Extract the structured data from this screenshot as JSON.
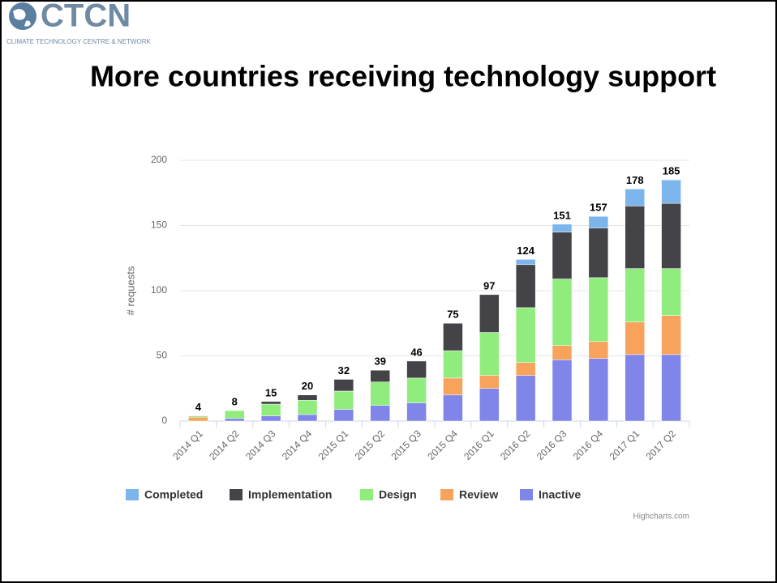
{
  "logo": {
    "name": "CTCN",
    "tagline": "CLIMATE TECHNOLOGY CENTRE & NETWORK"
  },
  "chart_data": {
    "type": "stacked_bar",
    "title": "More countries receiving technology support",
    "y_label": "# requests",
    "credits": "Highcharts.com",
    "categories": [
      "2014 Q1",
      "2014 Q2",
      "2014 Q3",
      "2014 Q4",
      "2015 Q1",
      "2015 Q2",
      "2015 Q3",
      "2015 Q4",
      "2016 Q1",
      "2016 Q2",
      "2016 Q3",
      "2016 Q4",
      "2017 Q1",
      "2017 Q2"
    ],
    "totals": [
      4,
      8,
      15,
      20,
      32,
      39,
      46,
      75,
      97,
      124,
      151,
      157,
      178,
      185
    ],
    "series": [
      {
        "name": "Completed",
        "color": "#7cb5ec",
        "values": [
          0,
          0,
          0,
          0,
          0,
          0,
          0,
          0,
          0,
          4,
          6,
          9,
          13,
          18
        ]
      },
      {
        "name": "Implementation",
        "color": "#434348",
        "values": [
          0,
          0,
          2,
          4,
          9,
          9,
          13,
          21,
          29,
          33,
          36,
          38,
          48,
          50
        ]
      },
      {
        "name": "Design",
        "color": "#90ed7d",
        "values": [
          1,
          6,
          9,
          11,
          14,
          18,
          19,
          21,
          33,
          42,
          51,
          49,
          41,
          36
        ]
      },
      {
        "name": "Review",
        "color": "#f7a35c",
        "values": [
          3,
          0,
          0,
          0,
          0,
          0,
          0,
          13,
          10,
          10,
          11,
          13,
          25,
          30
        ]
      },
      {
        "name": "Inactive",
        "color": "#8085e9",
        "values": [
          0,
          2,
          4,
          5,
          9,
          12,
          14,
          20,
          25,
          35,
          47,
          48,
          51,
          51
        ]
      }
    ],
    "ylim": [
      0,
      200
    ],
    "yticks": [
      0,
      50,
      100,
      150,
      200
    ],
    "grid": true
  }
}
